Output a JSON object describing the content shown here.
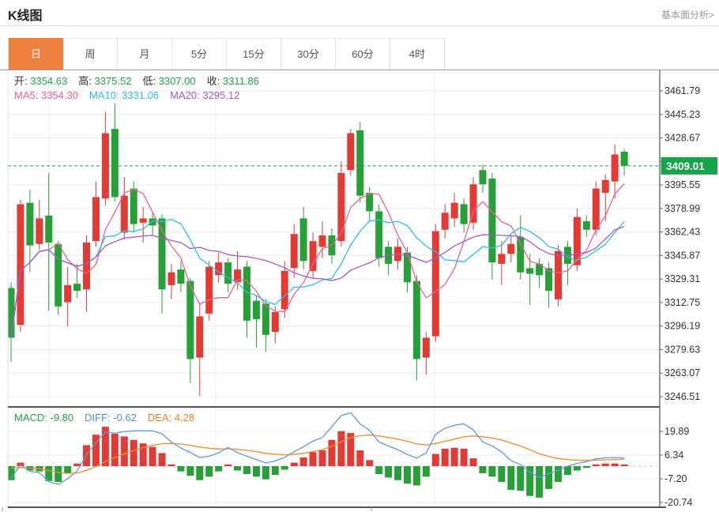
{
  "header": {
    "title": "K线图",
    "link": "基本面分析>"
  },
  "tabs": {
    "items": [
      "日",
      "周",
      "月",
      "5分",
      "15分",
      "30分",
      "60分",
      "4时"
    ],
    "selected": "日"
  },
  "ohlc_info": [
    {
      "name": "open",
      "label": "开:",
      "value": "3354.63"
    },
    {
      "name": "high",
      "label": "高:",
      "value": "3375.52"
    },
    {
      "name": "low",
      "label": "低:",
      "value": "3307.00"
    },
    {
      "name": "close",
      "label": "收:",
      "value": "3311.86"
    }
  ],
  "ma_info": [
    {
      "name": "ma5",
      "label": "MA5:",
      "value": "3354.30",
      "color": "#ef618c"
    },
    {
      "name": "ma10",
      "label": "MA10:",
      "value": "3331.06",
      "color": "#2fc0da"
    },
    {
      "name": "ma20",
      "label": "MA20:",
      "value": "3295.12",
      "color": "#a55bc5"
    }
  ],
  "macd_info": [
    {
      "name": "macd",
      "label": "MACD:",
      "value": "-9.80",
      "color": "#23a24b"
    },
    {
      "name": "diff",
      "label": "DIFF:",
      "value": "-0.62",
      "color": "#5490d2"
    },
    {
      "name": "dea",
      "label": "DEA:",
      "value": "4.28",
      "color": "#ef7f25"
    }
  ],
  "colors": {
    "up": "#e23b35",
    "down": "#28a03a",
    "badge": "#16a34a",
    "current_line": "#2fa052",
    "ma5": "#ef618c",
    "ma10": "#2fc0da",
    "ma20": "#a55bc5",
    "diff_line": "#5e9bd8",
    "dea_line": "#f08c2e",
    "grid": "#ececec",
    "axis": "#555555",
    "axis_text": "#333333",
    "tab_active": "#ee8040",
    "value_green": "#23a24b"
  },
  "chart_data": {
    "type": "candlestick",
    "panels": [
      "price",
      "macd"
    ],
    "price_axis": {
      "top_value": 3461.79,
      "bottom_value": 3246.51,
      "labels": [
        "3461.79",
        "3445.23",
        "3428.67",
        "3412.11",
        "3395.55",
        "3378.99",
        "3362.43",
        "3345.87",
        "3329.31",
        "3312.75",
        "3296.19",
        "3279.63",
        "3263.07",
        "3246.51"
      ]
    },
    "current_price": {
      "value": 3409.01,
      "label": "3409.01"
    },
    "ma_periods": [
      5,
      10,
      20
    ],
    "candles": [
      [
        3323,
        3288,
        3327,
        3271
      ],
      [
        3297,
        3382,
        3385,
        3292
      ],
      [
        3383,
        3353,
        3392,
        3334
      ],
      [
        3354,
        3372,
        3385,
        3350
      ],
      [
        3374,
        3355,
        3404,
        3307
      ],
      [
        3354,
        3310,
        3356,
        3304
      ],
      [
        3313,
        3325,
        3338,
        3296
      ],
      [
        3326,
        3321,
        3340,
        3316
      ],
      [
        3322,
        3355,
        3360,
        3306
      ],
      [
        3356,
        3387,
        3398,
        3352
      ],
      [
        3386,
        3432,
        3447,
        3381
      ],
      [
        3435,
        3387,
        3453,
        3384
      ],
      [
        3362,
        3388,
        3401,
        3357
      ],
      [
        3393,
        3368,
        3398,
        3362
      ],
      [
        3369,
        3372,
        3380,
        3355
      ],
      [
        3372,
        3367,
        3376,
        3360
      ],
      [
        3372,
        3322,
        3375,
        3305
      ],
      [
        3325,
        3334,
        3340,
        3315
      ],
      [
        3336,
        3326,
        3342,
        3320
      ],
      [
        3328,
        3273,
        3330,
        3256
      ],
      [
        3274,
        3303,
        3312,
        3247
      ],
      [
        3305,
        3338,
        3342,
        3300
      ],
      [
        3332,
        3341,
        3348,
        3327
      ],
      [
        3341,
        3326,
        3344,
        3320
      ],
      [
        3327,
        3336,
        3349,
        3322
      ],
      [
        3338,
        3300,
        3342,
        3288
      ],
      [
        3314,
        3301,
        3318,
        3281
      ],
      [
        3312,
        3290,
        3315,
        3278
      ],
      [
        3292,
        3306,
        3310,
        3284
      ],
      [
        3308,
        3335,
        3342,
        3302
      ],
      [
        3337,
        3361,
        3368,
        3330
      ],
      [
        3372,
        3342,
        3380,
        3336
      ],
      [
        3335,
        3356,
        3362,
        3330
      ],
      [
        3352,
        3360,
        3370,
        3344
      ],
      [
        3360,
        3346,
        3365,
        3340
      ],
      [
        3356,
        3404,
        3412,
        3352
      ],
      [
        3406,
        3432,
        3435,
        3402
      ],
      [
        3434,
        3388,
        3440,
        3383
      ],
      [
        3390,
        3377,
        3394,
        3370
      ],
      [
        3377,
        3344,
        3382,
        3338
      ],
      [
        3352,
        3340,
        3356,
        3332
      ],
      [
        3342,
        3352,
        3358,
        3336
      ],
      [
        3348,
        3327,
        3352,
        3320
      ],
      [
        3328,
        3273,
        3332,
        3258
      ],
      [
        3274,
        3288,
        3292,
        3262
      ],
      [
        3289,
        3363,
        3368,
        3285
      ],
      [
        3364,
        3376,
        3382,
        3358
      ],
      [
        3372,
        3383,
        3390,
        3366
      ],
      [
        3382,
        3368,
        3386,
        3362
      ],
      [
        3369,
        3396,
        3401,
        3364
      ],
      [
        3406,
        3396,
        3410,
        3390
      ],
      [
        3400,
        3341,
        3404,
        3329
      ],
      [
        3340,
        3347,
        3356,
        3325
      ],
      [
        3347,
        3354,
        3360,
        3341
      ],
      [
        3359,
        3334,
        3374,
        3329
      ],
      [
        3337,
        3333,
        3347,
        3311
      ],
      [
        3340,
        3332,
        3344,
        3323
      ],
      [
        3337,
        3321,
        3341,
        3309
      ],
      [
        3315,
        3349,
        3353,
        3310
      ],
      [
        3352,
        3340,
        3356,
        3325
      ],
      [
        3339,
        3373,
        3379,
        3335
      ],
      [
        3370,
        3364,
        3374,
        3359
      ],
      [
        3364,
        3393,
        3398,
        3360
      ],
      [
        3390,
        3399,
        3403,
        3370
      ],
      [
        3398,
        3417,
        3424,
        3386
      ],
      [
        3419,
        3409,
        3421,
        3402
      ]
    ],
    "macd": {
      "axis_labels": [
        "19.89",
        "6.34",
        "-7.20",
        "-20.74"
      ],
      "axis_values": [
        19.89,
        6.34,
        -7.2,
        -20.74
      ],
      "histogram": [
        -8,
        2,
        -2.5,
        -3,
        -8.5,
        -9,
        -4,
        1.5,
        12,
        18,
        22.5,
        18.5,
        17,
        15,
        13,
        11,
        7.5,
        1,
        -3,
        -5.5,
        -8,
        -6,
        -3,
        1,
        -2.5,
        -4.5,
        -6,
        -7.5,
        -5,
        -2,
        2,
        5,
        8,
        9,
        15,
        20,
        19,
        9,
        3.5,
        -4.5,
        -6.5,
        -8,
        -10,
        -11,
        -6,
        7,
        10,
        10.5,
        10,
        4.5,
        -4,
        -6,
        -9,
        -13.5,
        -14,
        -17,
        -18,
        -13,
        -9,
        -5,
        -2.5,
        -1,
        1,
        1.5,
        1.5,
        1
      ]
    }
  }
}
